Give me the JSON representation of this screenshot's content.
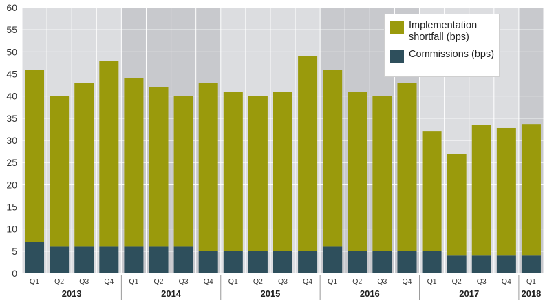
{
  "chart_data": {
    "type": "bar",
    "stacked": true,
    "title": "",
    "xlabel": "",
    "ylabel": "",
    "ylim": [
      0,
      60
    ],
    "yticks": [
      0,
      5,
      10,
      15,
      20,
      25,
      30,
      35,
      40,
      45,
      50,
      55,
      60
    ],
    "grid": true,
    "legend_position": "top-right",
    "categories": [
      "Q1",
      "Q2",
      "Q3",
      "Q4",
      "Q1",
      "Q2",
      "Q3",
      "Q4",
      "Q1",
      "Q2",
      "Q3",
      "Q4",
      "Q1",
      "Q2",
      "Q3",
      "Q4",
      "Q1",
      "Q2",
      "Q3",
      "Q4",
      "Q1"
    ],
    "year_groups": [
      {
        "label": "2013",
        "count": 4,
        "shaded": false
      },
      {
        "label": "2014",
        "count": 4,
        "shaded": true
      },
      {
        "label": "2015",
        "count": 4,
        "shaded": false
      },
      {
        "label": "2016",
        "count": 4,
        "shaded": true
      },
      {
        "label": "2017",
        "count": 4,
        "shaded": false
      },
      {
        "label": "2018",
        "count": 1,
        "shaded": true
      }
    ],
    "series": [
      {
        "name": "Commissions (bps)",
        "color": "#2e4f5c",
        "values": [
          7,
          6,
          6,
          6,
          6,
          6,
          6,
          5,
          5,
          5,
          5,
          5,
          6,
          5,
          5,
          5,
          5,
          4,
          4,
          4,
          4
        ]
      },
      {
        "name": "Implementation shortfall (bps)",
        "color": "#9a9a0c",
        "values": [
          39,
          34,
          37,
          42,
          38,
          36,
          34,
          38,
          36,
          35,
          36,
          44,
          40,
          36,
          35,
          38,
          27,
          23,
          29.5,
          28.8,
          29.7
        ]
      }
    ]
  },
  "colors": {
    "plot_bg_light": "#dcdde0",
    "plot_bg_dark": "#c8c9cd",
    "grid": "#ffffff"
  },
  "legend": {
    "items": [
      {
        "label": "Implementation shortfall (bps)",
        "color": "#9a9a0c"
      },
      {
        "label": "Commissions (bps)",
        "color": "#2e4f5c"
      }
    ]
  }
}
